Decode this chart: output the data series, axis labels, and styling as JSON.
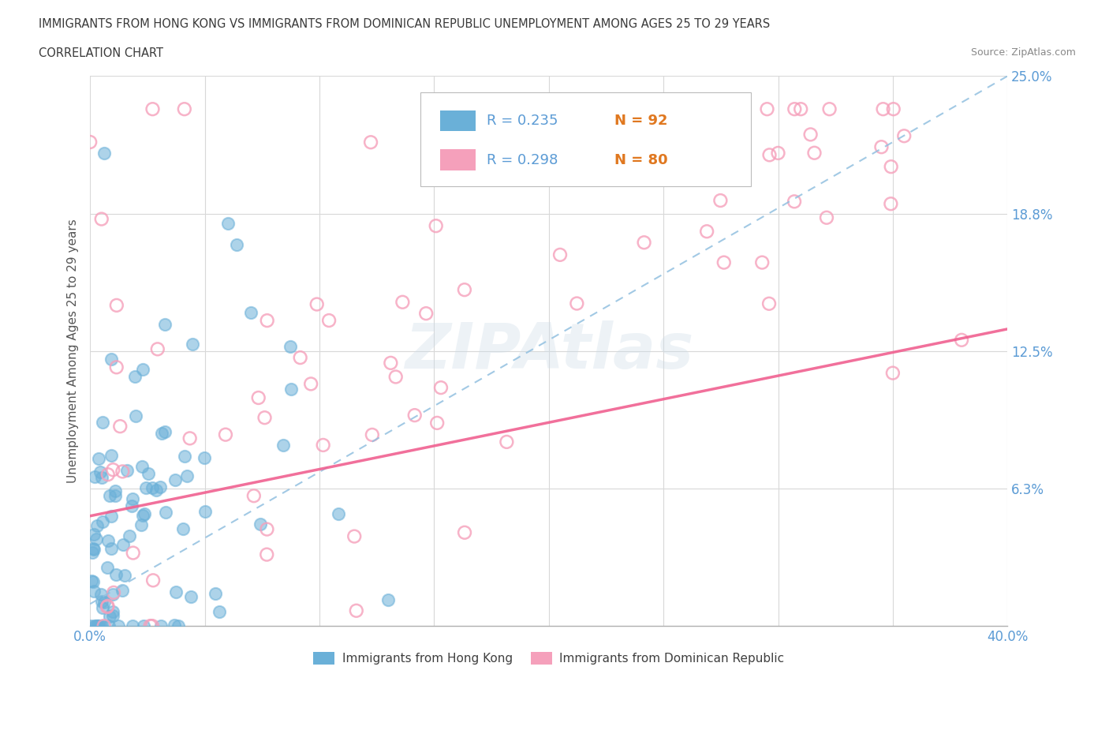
{
  "title_line1": "IMMIGRANTS FROM HONG KONG VS IMMIGRANTS FROM DOMINICAN REPUBLIC UNEMPLOYMENT AMONG AGES 25 TO 29 YEARS",
  "title_line2": "CORRELATION CHART",
  "source_text": "Source: ZipAtlas.com",
  "ylabel": "Unemployment Among Ages 25 to 29 years",
  "xlim": [
    0,
    0.4
  ],
  "ylim": [
    0,
    0.25
  ],
  "xticks": [
    0.0,
    0.05,
    0.1,
    0.15,
    0.2,
    0.25,
    0.3,
    0.35,
    0.4
  ],
  "ytick_values": [
    0.0,
    0.0625,
    0.125,
    0.1875,
    0.25
  ],
  "ytick_labels": [
    "",
    "6.3%",
    "12.5%",
    "18.8%",
    "25.0%"
  ],
  "hk_R": 0.235,
  "hk_N": 92,
  "dr_R": 0.298,
  "dr_N": 80,
  "hk_color": "#6ab0d8",
  "dr_color": "#f5a0bb",
  "hk_line_color": "#92c0e0",
  "dr_line_color": "#f06090",
  "background_color": "#ffffff",
  "grid_color": "#d8d8d8",
  "title_color": "#3a3a3a",
  "axis_label_color": "#555555",
  "tick_label_color": "#5b9bd5",
  "n_label_color": "#e07820",
  "watermark_color": "#ccdce8",
  "watermark_alpha": 0.35,
  "hk_trendline_start_x": 0.0,
  "hk_trendline_start_y": 0.01,
  "hk_trendline_end_x": 0.4,
  "hk_trendline_end_y": 0.25,
  "dr_trendline_start_x": 0.0,
  "dr_trendline_start_y": 0.05,
  "dr_trendline_end_x": 0.4,
  "dr_trendline_end_y": 0.135
}
